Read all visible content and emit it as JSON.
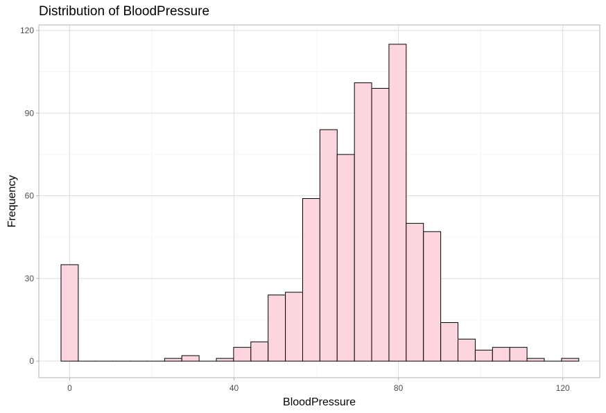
{
  "chart_data": {
    "type": "bar",
    "subtype": "histogram",
    "title": "Distribution of BloodPressure",
    "xlabel": "BloodPressure",
    "ylabel": "Frequency",
    "xlim": [
      -7.5,
      129
    ],
    "ylim": [
      -6,
      122
    ],
    "x_ticks": [
      0,
      40,
      80,
      120
    ],
    "y_ticks": [
      0,
      30,
      60,
      90,
      120
    ],
    "grid": true,
    "bin_width": 4.2,
    "bar_fill": "#fdd5de",
    "bar_stroke": "#000000",
    "bins": [
      {
        "x": 0.0,
        "count": 35
      },
      {
        "x": 4.2,
        "count": 0
      },
      {
        "x": 8.4,
        "count": 0
      },
      {
        "x": 12.6,
        "count": 0
      },
      {
        "x": 16.8,
        "count": 0
      },
      {
        "x": 21.0,
        "count": 0
      },
      {
        "x": 25.2,
        "count": 1
      },
      {
        "x": 29.4,
        "count": 2
      },
      {
        "x": 33.6,
        "count": 0
      },
      {
        "x": 37.8,
        "count": 1
      },
      {
        "x": 42.0,
        "count": 5
      },
      {
        "x": 46.2,
        "count": 7
      },
      {
        "x": 50.4,
        "count": 24
      },
      {
        "x": 54.6,
        "count": 25
      },
      {
        "x": 58.8,
        "count": 59
      },
      {
        "x": 63.0,
        "count": 84
      },
      {
        "x": 67.2,
        "count": 75
      },
      {
        "x": 71.4,
        "count": 101
      },
      {
        "x": 75.6,
        "count": 99
      },
      {
        "x": 79.8,
        "count": 115
      },
      {
        "x": 84.0,
        "count": 50
      },
      {
        "x": 88.2,
        "count": 47
      },
      {
        "x": 92.4,
        "count": 14
      },
      {
        "x": 96.6,
        "count": 8
      },
      {
        "x": 100.8,
        "count": 4
      },
      {
        "x": 105.0,
        "count": 5
      },
      {
        "x": 109.2,
        "count": 5
      },
      {
        "x": 113.4,
        "count": 1
      },
      {
        "x": 117.6,
        "count": 0
      },
      {
        "x": 121.8,
        "count": 1
      }
    ]
  }
}
